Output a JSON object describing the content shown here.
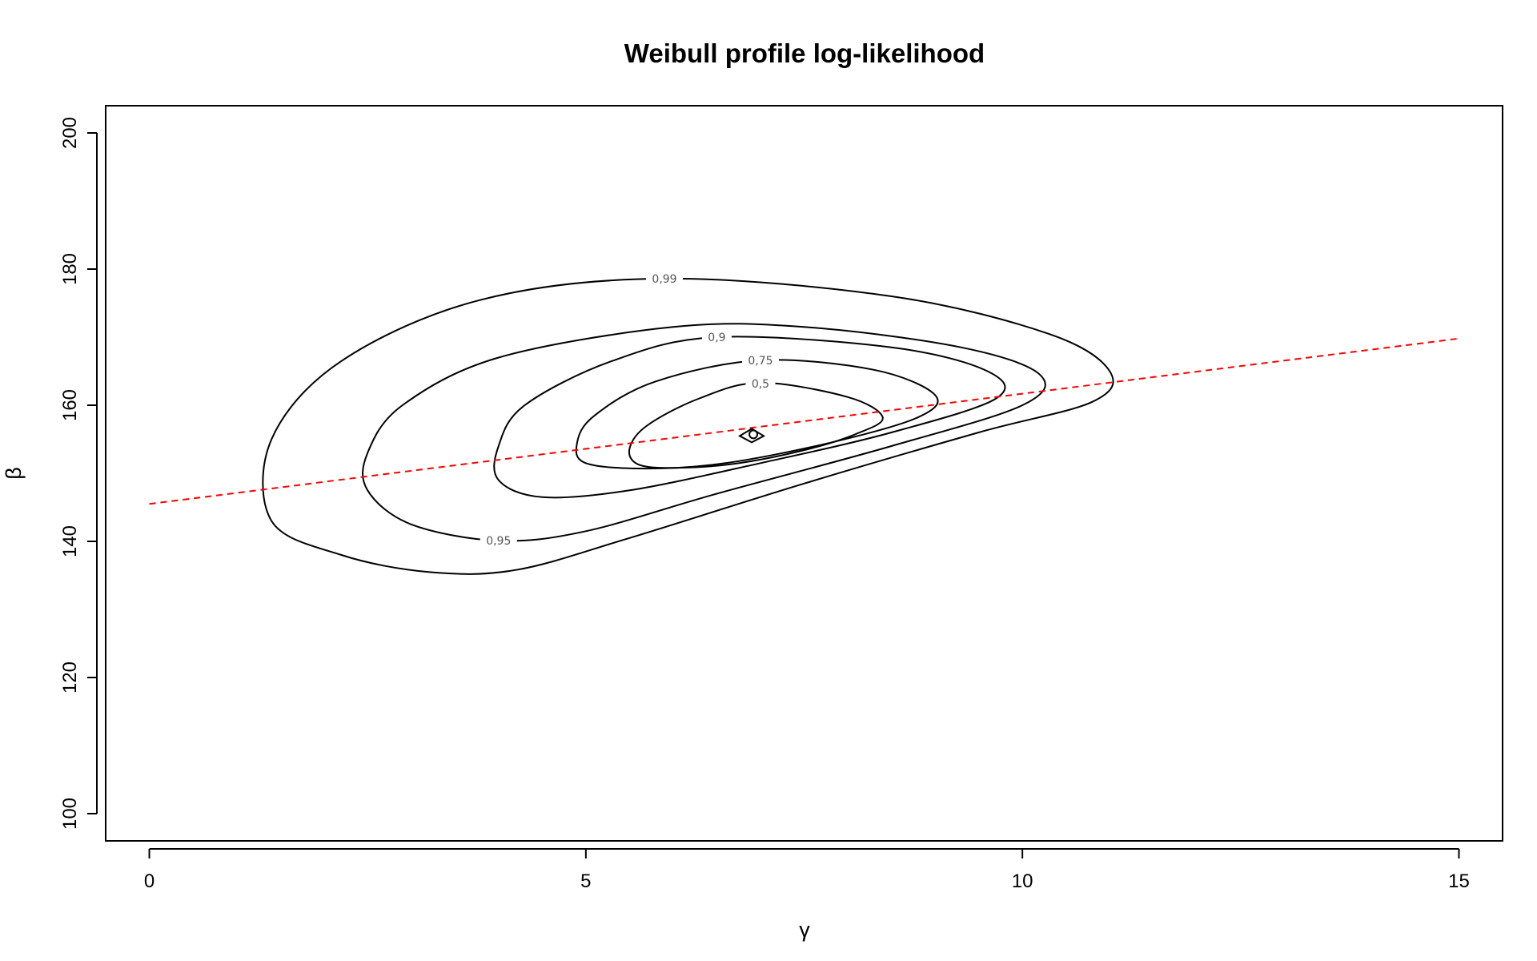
{
  "chart_data": {
    "type": "contour",
    "title": "Weibull profile log-likelihood",
    "xlabel": "γ",
    "ylabel": "β",
    "xlim": [
      -0.5,
      15.5
    ],
    "ylim": [
      96,
      204
    ],
    "xticks": [
      0,
      5,
      10,
      15
    ],
    "yticks": [
      100,
      120,
      140,
      160,
      180,
      200
    ],
    "grid": false,
    "contours": [
      {
        "level": "0,5",
        "label_at": [
          7.0,
          163.2
        ],
        "points": [
          [
            7.0,
            163.3
          ],
          [
            8.0,
            161.2
          ],
          [
            8.4,
            158.2
          ],
          [
            8.1,
            155.8
          ],
          [
            7.5,
            153.4
          ],
          [
            6.7,
            151.4
          ],
          [
            6.0,
            150.8
          ],
          [
            5.6,
            151.3
          ],
          [
            5.5,
            153.6
          ],
          [
            5.7,
            157.0
          ],
          [
            6.3,
            161.0
          ],
          [
            7.0,
            163.3
          ]
        ]
      },
      {
        "level": "0,75",
        "label_at": [
          7.0,
          166.6
        ],
        "points": [
          [
            7.0,
            166.6
          ],
          [
            8.3,
            165.2
          ],
          [
            9.0,
            161.5
          ],
          [
            8.8,
            158.2
          ],
          [
            7.8,
            154.5
          ],
          [
            6.6,
            151.5
          ],
          [
            5.7,
            150.7
          ],
          [
            5.0,
            151.5
          ],
          [
            4.9,
            154.5
          ],
          [
            5.1,
            158.5
          ],
          [
            5.8,
            163.5
          ],
          [
            7.0,
            166.6
          ]
        ]
      },
      {
        "level": "0,9",
        "label_at": [
          6.5,
          170.0
        ],
        "points": [
          [
            6.5,
            170.0
          ],
          [
            8.5,
            168.5
          ],
          [
            9.6,
            165.0
          ],
          [
            9.7,
            161.0
          ],
          [
            8.5,
            156.0
          ],
          [
            7.0,
            151.5
          ],
          [
            5.5,
            147.5
          ],
          [
            4.5,
            146.5
          ],
          [
            4.0,
            149.0
          ],
          [
            4.0,
            154.0
          ],
          [
            4.3,
            160.0
          ],
          [
            5.3,
            166.5
          ],
          [
            6.5,
            170.0
          ]
        ]
      },
      {
        "level": "0,95",
        "label_at": [
          4.0,
          140.1
        ],
        "points": [
          [
            4.0,
            140.1
          ],
          [
            3.0,
            142.5
          ],
          [
            2.5,
            147.5
          ],
          [
            2.5,
            153.0
          ],
          [
            2.9,
            160.0
          ],
          [
            4.0,
            167.0
          ],
          [
            6.0,
            171.5
          ],
          [
            7.5,
            171.5
          ],
          [
            9.3,
            168.5
          ],
          [
            10.2,
            164.5
          ],
          [
            10.0,
            160.0
          ],
          [
            8.5,
            154.0
          ],
          [
            6.5,
            147.0
          ],
          [
            5.0,
            141.5
          ],
          [
            4.0,
            140.1
          ]
        ]
      },
      {
        "level": "0,99",
        "label_at": [
          5.9,
          178.6
        ],
        "points": [
          [
            5.9,
            178.6
          ],
          [
            8.5,
            176.0
          ],
          [
            10.3,
            170.5
          ],
          [
            11.0,
            165.0
          ],
          [
            10.8,
            160.5
          ],
          [
            9.5,
            156.0
          ],
          [
            7.5,
            148.5
          ],
          [
            5.5,
            140.5
          ],
          [
            4.2,
            135.8
          ],
          [
            3.2,
            135.5
          ],
          [
            2.2,
            138.0
          ],
          [
            1.4,
            143.0
          ],
          [
            1.4,
            155.0
          ],
          [
            2.2,
            166.5
          ],
          [
            3.8,
            175.5
          ],
          [
            5.9,
            178.6
          ]
        ]
      }
    ],
    "maximum": {
      "x": 6.9,
      "y": 155.6
    },
    "reference_line": {
      "style": "dashed",
      "color": "#ff0000",
      "points": [
        [
          0.0,
          145.5
        ],
        [
          15.0,
          169.8
        ]
      ]
    }
  }
}
